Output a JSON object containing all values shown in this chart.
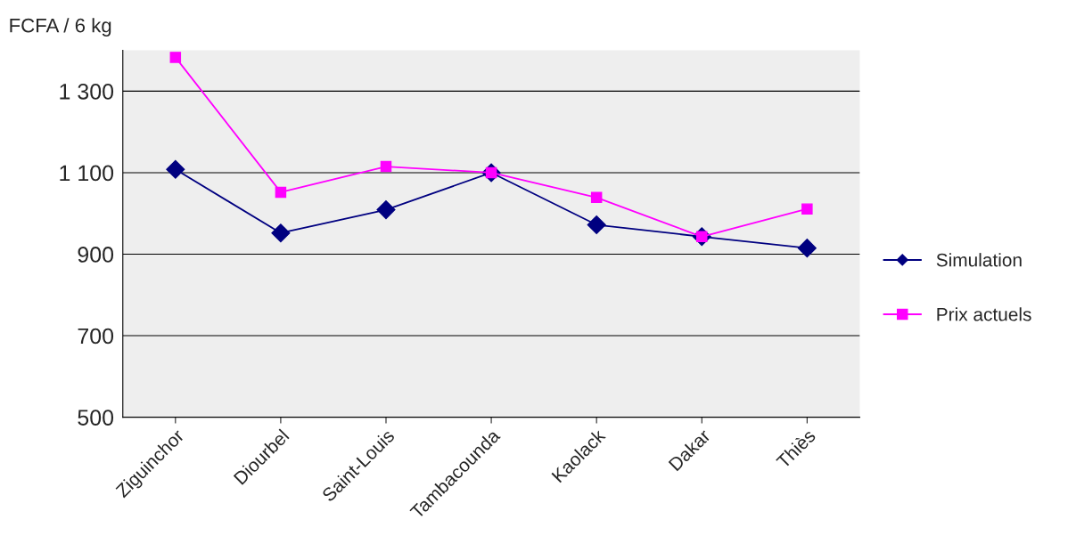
{
  "chart_data": {
    "type": "line",
    "ylabel": "FCFA / 6 kg",
    "categories": [
      "Ziguinchor",
      "Diourbel",
      "Saint-Louis",
      "Tambacounda",
      "Kaolack",
      "Dakar",
      "Thiès"
    ],
    "series": [
      {
        "name": "Simulation",
        "color": "#000080",
        "marker": "diamond",
        "values": [
          1108,
          952,
          1009,
          1100,
          972,
          943,
          915
        ]
      },
      {
        "name": "Prix actuels",
        "color": "#ff00ff",
        "marker": "square",
        "values": [
          1383,
          1052,
          1115,
          1100,
          1039,
          943,
          1011
        ]
      }
    ],
    "ylim": [
      500,
      1400
    ],
    "yticks": [
      {
        "value": 500,
        "label": "500"
      },
      {
        "value": 700,
        "label": "700"
      },
      {
        "value": 900,
        "label": "900"
      },
      {
        "value": 1100,
        "label": "1 100"
      },
      {
        "value": 1300,
        "label": "1 300"
      }
    ],
    "grid": "y",
    "legend": "right",
    "line_style": "solid"
  }
}
